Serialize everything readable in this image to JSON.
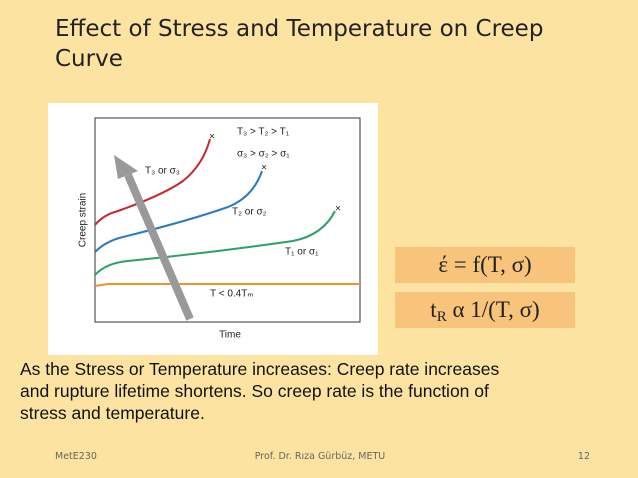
{
  "header": {
    "title_lines": [
      "Effect of Stress and Temperature on Creep",
      "Curve"
    ]
  },
  "figure": {
    "y_axis_label": "Creep strain",
    "x_axis_label": "Time",
    "legend_lines": [
      "T₃ > T₂ > T₁",
      "σ₃ > σ₂ > σ₁"
    ],
    "curve_labels": [
      "T₃ or σ₃",
      "T₂ or σ₂",
      "T₁ or σ₁",
      "T < 0.4Tₘ"
    ]
  },
  "formulas": {
    "first": "έ = f(T, σ)",
    "second": [
      "t",
      "R",
      " α 1/(T, σ)"
    ]
  },
  "paragraph_lines": [
    "As the Stress or Temperature increases: Creep rate increases",
    "and rupture lifetime shortens. So creep rate is the function of",
    "stress and temperature."
  ],
  "footer": {
    "left": "MetE230",
    "center": "Prof. Dr. Rıza Gürbüz, METU",
    "right": "12"
  }
}
